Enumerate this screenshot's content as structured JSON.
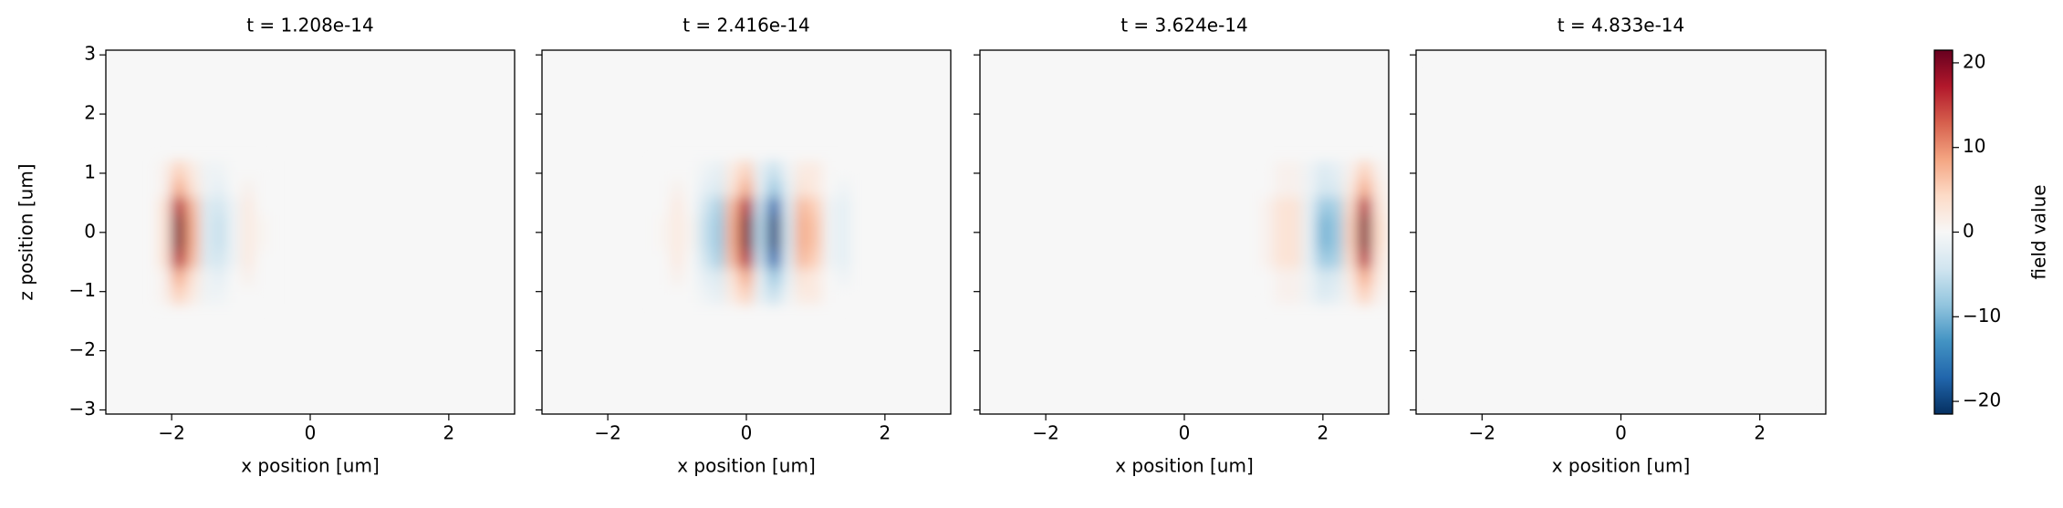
{
  "chart_data": [
    {
      "type": "heatmap",
      "title": "t = 1.208e-14",
      "xlabel": "x position [um]",
      "ylabel": "z position [um]",
      "xlim": [
        -2.95,
        2.95
      ],
      "ylim": [
        -3.07,
        3.08
      ],
      "xticks": [
        {
          "value": -2,
          "label": "−2"
        },
        0,
        2
      ],
      "yticks": [
        {
          "value": -3,
          "label": "−3"
        },
        {
          "value": -2,
          "label": "−2"
        },
        {
          "value": -1,
          "label": "−1"
        },
        0,
        1,
        2,
        3
      ],
      "ytick_labels": true,
      "x": [
        -2.1,
        -1.9,
        -1.7,
        -1.5,
        -1.3,
        -1.1,
        -0.9,
        -0.7
      ],
      "z": [
        -1.05,
        -0.75,
        -0.45,
        -0.15,
        0.15,
        0.45,
        0.75,
        1.05
      ],
      "values": [
        [
          1,
          5,
          2,
          -1,
          -1,
          0,
          0,
          0
        ],
        [
          1,
          8,
          3,
          -1,
          -2,
          0,
          1,
          0
        ],
        [
          3,
          17,
          7,
          -3,
          -4,
          -1,
          2,
          0
        ],
        [
          3,
          20,
          8,
          -3,
          -5,
          -1,
          2,
          0.5
        ],
        [
          3,
          20,
          8,
          -3,
          -5,
          -1,
          2,
          0.5
        ],
        [
          3,
          17,
          7,
          -3,
          -4,
          -1,
          2,
          0
        ],
        [
          1,
          8,
          3,
          -1,
          -2,
          0,
          1,
          0
        ],
        [
          1,
          5,
          2,
          -1,
          -1,
          0,
          0,
          0
        ]
      ]
    },
    {
      "type": "heatmap",
      "title": "t = 2.416e-14",
      "xlabel": "x position [um]",
      "xlim": [
        -2.95,
        2.95
      ],
      "ylim": [
        -3.07,
        3.08
      ],
      "xticks": [
        {
          "value": -2,
          "label": "−2"
        },
        0,
        2
      ],
      "yticks": [
        -3,
        -2,
        -1,
        0,
        1,
        2,
        3
      ],
      "ytick_labels": false,
      "x": [
        -1.2,
        -1.0,
        -0.8,
        -0.6,
        -0.4,
        -0.2,
        0,
        0.2,
        0.4,
        0.6,
        0.8,
        1.0,
        1.2,
        1.4
      ],
      "z": [
        -1.05,
        -0.75,
        -0.45,
        -0.15,
        0.15,
        0.45,
        0.75,
        1.05
      ],
      "values": [
        [
          0,
          0,
          0,
          -1,
          -2,
          2,
          5,
          -2,
          -5,
          -1,
          2,
          2,
          0,
          0
        ],
        [
          0,
          1,
          0,
          -2,
          -3,
          3,
          8,
          -2,
          -8,
          -2,
          3,
          2,
          0,
          -1
        ],
        [
          0,
          2,
          0,
          -4,
          -7,
          7,
          17,
          -5,
          -17,
          -3,
          7,
          5,
          -1,
          -2
        ],
        [
          0.5,
          2,
          0.5,
          -5,
          -8,
          8,
          20,
          -6,
          -20,
          -4,
          8,
          6,
          -1,
          -2
        ],
        [
          0.5,
          2,
          0.5,
          -5,
          -8,
          8,
          20,
          -6,
          -20,
          -4,
          8,
          6,
          -1,
          -2
        ],
        [
          0,
          2,
          0,
          -4,
          -7,
          7,
          17,
          -5,
          -17,
          -3,
          7,
          5,
          -1,
          -2
        ],
        [
          0,
          1,
          0,
          -2,
          -3,
          3,
          8,
          -2,
          -8,
          -2,
          3,
          2,
          0,
          -1
        ],
        [
          0,
          0,
          0,
          -1,
          -2,
          2,
          5,
          -2,
          -5,
          -1,
          2,
          2,
          0,
          0
        ]
      ]
    },
    {
      "type": "heatmap",
      "title": "t = 3.624e-14",
      "xlabel": "x position [um]",
      "xlim": [
        -2.95,
        2.95
      ],
      "ylim": [
        -3.07,
        3.08
      ],
      "xticks": [
        {
          "value": -2,
          "label": "−2"
        },
        0,
        2
      ],
      "yticks": [
        -3,
        -2,
        -1,
        0,
        1,
        2,
        3
      ],
      "ytick_labels": false,
      "x": [
        1.2,
        1.4,
        1.6,
        1.8,
        2.0,
        2.2,
        2.4,
        2.6,
        2.8
      ],
      "z": [
        -1.05,
        -0.75,
        -0.45,
        -0.15,
        0.15,
        0.45,
        0.75,
        1.05
      ],
      "values": [
        [
          0,
          1,
          1,
          -1,
          -3,
          -2,
          1,
          5,
          1
        ],
        [
          0,
          1,
          1,
          -1,
          -4,
          -3,
          2,
          8,
          2
        ],
        [
          1,
          3,
          3,
          -2,
          -8,
          -7,
          4,
          17,
          3
        ],
        [
          1,
          3,
          3,
          -2,
          -10,
          -8,
          5,
          20,
          4
        ],
        [
          1,
          3,
          3,
          -2,
          -10,
          -8,
          5,
          20,
          4
        ],
        [
          1,
          3,
          3,
          -2,
          -8,
          -7,
          4,
          17,
          3
        ],
        [
          0,
          1,
          1,
          -1,
          -4,
          -3,
          2,
          8,
          2
        ],
        [
          0,
          1,
          1,
          -1,
          -3,
          -2,
          1,
          5,
          1
        ]
      ]
    },
    {
      "type": "heatmap",
      "title": "t = 4.833e-14",
      "xlabel": "x position [um]",
      "xlim": [
        -2.95,
        2.95
      ],
      "ylim": [
        -3.07,
        3.08
      ],
      "xticks": [
        {
          "value": -2,
          "label": "−2"
        },
        0,
        2
      ],
      "yticks": [
        -3,
        -2,
        -1,
        0,
        1,
        2,
        3
      ],
      "ytick_labels": false,
      "x": [
        -2,
        0,
        2
      ],
      "z": [
        -2,
        0,
        2
      ],
      "values": [
        [
          0,
          0,
          0
        ],
        [
          0,
          0,
          0
        ],
        [
          0,
          0,
          0
        ]
      ]
    },
    {
      "type": "colorbar",
      "label": "field value",
      "cmap": "RdBu_r",
      "clim": [
        -21.5,
        21.5
      ],
      "ticks": [
        {
          "value": -20,
          "label": "−20"
        },
        {
          "value": -10,
          "label": "−10"
        },
        0,
        10,
        20
      ]
    }
  ]
}
